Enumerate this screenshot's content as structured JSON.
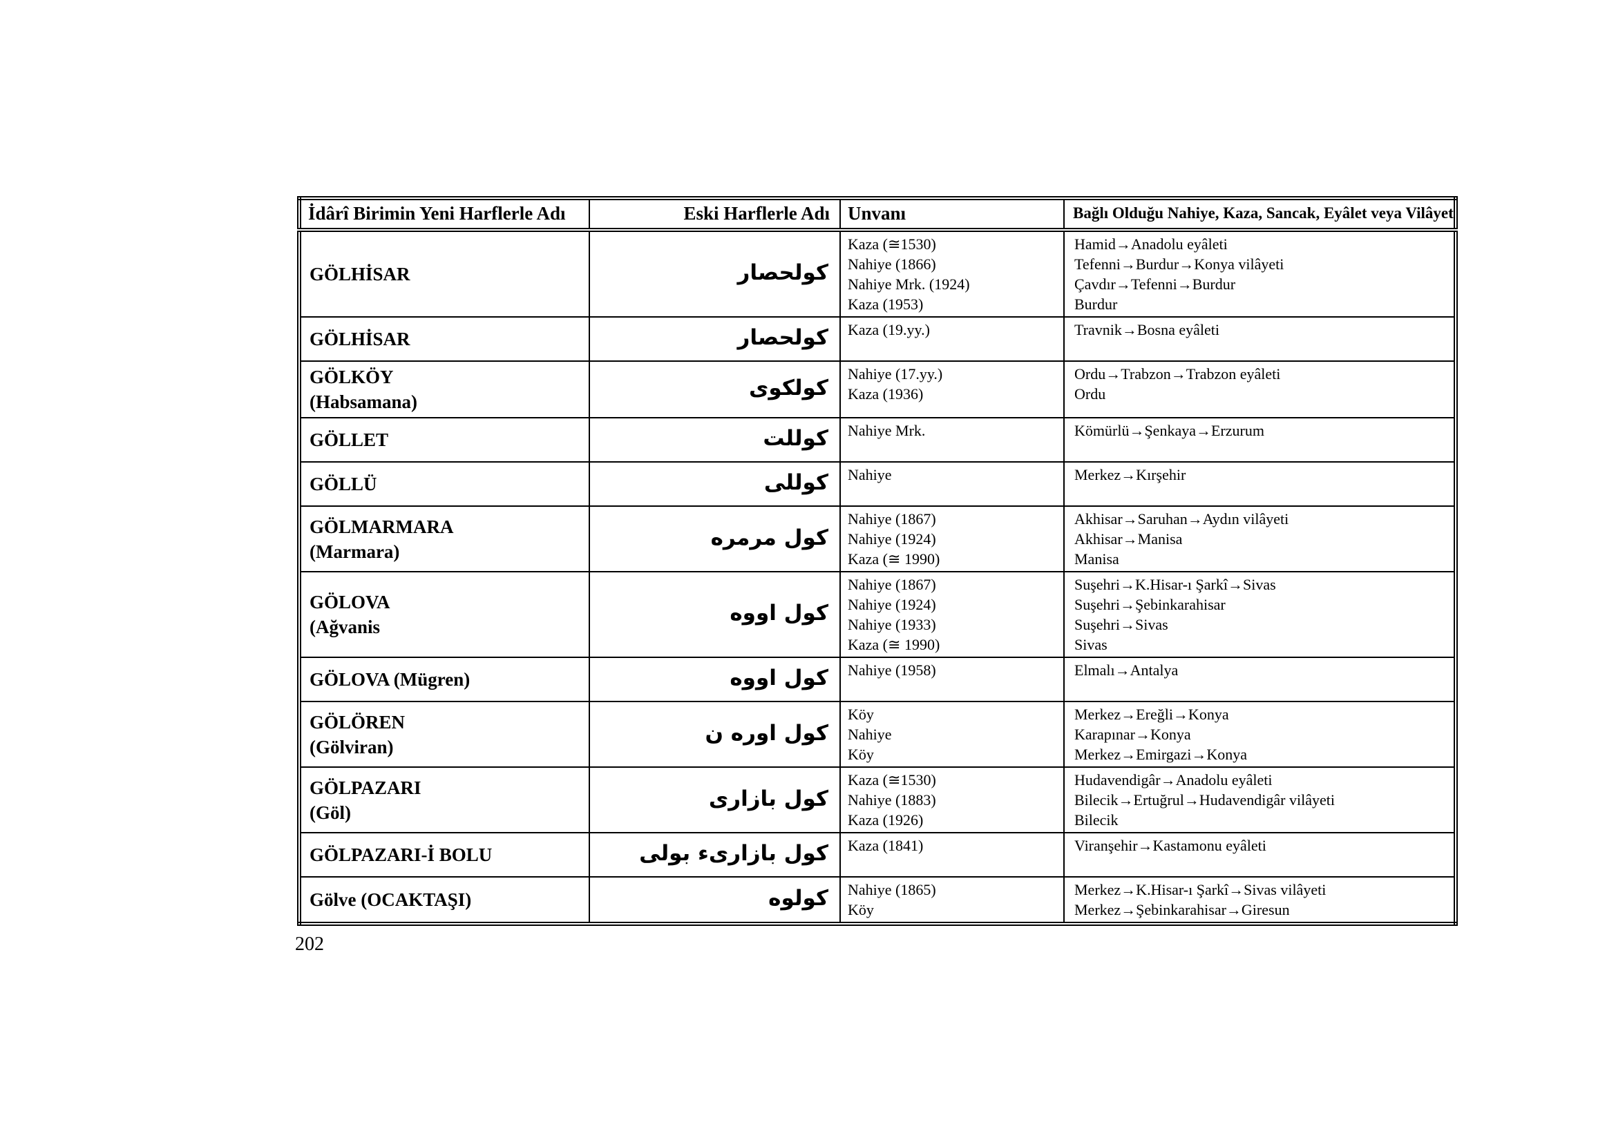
{
  "page": {
    "number": "202"
  },
  "table": {
    "headers": [
      "İdârî Birimin Yeni Harflerle Adı",
      "Eski Harflerle Adı",
      "Unvanı",
      "Bağlı Olduğu Nahiye, Kaza, Sancak, Eyâlet veya Vilâyet"
    ],
    "rows": [
      {
        "name": "GÖLHİSAR",
        "ottoman": "كولحصار",
        "unvan": [
          "Kaza (≅1530)",
          "Nahiye (1866)",
          "Nahiye Mrk. (1924)",
          "Kaza (1953)"
        ],
        "bagli": [
          "Hamid→Anadolu eyâleti",
          "Tefenni→Burdur→Konya vilâyeti",
          "Çavdır→Tefenni→Burdur",
          "Burdur"
        ]
      },
      {
        "name": "GÖLHİSAR",
        "ottoman": "كولحصار",
        "unvan": [
          "Kaza (19.yy.)"
        ],
        "bagli": [
          "Travnik→Bosna eyâleti"
        ]
      },
      {
        "name": "GÖLKÖY\n(Habsamana)",
        "ottoman": "كولكوى",
        "unvan": [
          "Nahiye (17.yy.)",
          "Kaza (1936)"
        ],
        "bagli": [
          "Ordu→Trabzon→Trabzon eyâleti",
          "Ordu"
        ]
      },
      {
        "name": "GÖLLET",
        "ottoman": "كوللت",
        "unvan": [
          "Nahiye Mrk."
        ],
        "bagli": [
          "Kömürlü→Şenkaya→Erzurum"
        ]
      },
      {
        "name": "GÖLLÜ",
        "ottoman": "كوللى",
        "unvan": [
          "Nahiye"
        ],
        "bagli": [
          "Merkez→Kırşehir"
        ]
      },
      {
        "name": "GÖLMARMARA\n(Marmara)",
        "ottoman": "كول مرمره",
        "unvan": [
          "Nahiye (1867)",
          "Nahiye (1924)",
          "Kaza (≅ 1990)"
        ],
        "bagli": [
          "Akhisar→Saruhan→Aydın vilâyeti",
          "Akhisar→Manisa",
          "Manisa"
        ]
      },
      {
        "name": "GÖLOVA\n(Ağvanis",
        "ottoman": "كول اووه",
        "unvan": [
          "Nahiye (1867)",
          "Nahiye (1924)",
          "Nahiye (1933)",
          "Kaza (≅ 1990)"
        ],
        "bagli": [
          "Suşehri→K.Hisar-ı Şarkî→Sivas",
          "Suşehri→Şebinkarahisar",
          "Suşehri→Sivas",
          "Sivas"
        ]
      },
      {
        "name": "GÖLOVA (Mügren)",
        "ottoman": "كول اووه",
        "unvan": [
          "Nahiye (1958)"
        ],
        "bagli": [
          "Elmalı→Antalya"
        ]
      },
      {
        "name": "GÖLÖREN\n(Gölviran)",
        "ottoman": "كول اوره ن",
        "unvan": [
          "Köy",
          "Nahiye",
          "Köy"
        ],
        "bagli": [
          "Merkez→Ereğli→Konya",
          "Karapınar→Konya",
          "Merkez→Emirgazi→Konya"
        ]
      },
      {
        "name": "GÖLPAZARI\n(Göl)",
        "ottoman": "كول بازارى",
        "unvan": [
          "Kaza (≅1530)",
          "Nahiye (1883)",
          "Kaza (1926)"
        ],
        "bagli": [
          "Hudavendigâr→Anadolu eyâleti",
          "Bilecik→Ertuğrul→Hudavendigâr vilâyeti",
          "Bilecik"
        ]
      },
      {
        "name": "GÖLPAZARI-İ BOLU",
        "ottoman": "كول بازارىء بولى",
        "unvan": [
          "Kaza (1841)"
        ],
        "bagli": [
          "Viranşehir→Kastamonu eyâleti"
        ]
      },
      {
        "name": "Gölve (OCAKTAŞI)",
        "ottoman": "كولوه",
        "unvan": [
          "Nahiye (1865)",
          "Köy"
        ],
        "bagli": [
          "Merkez→K.Hisar-ı Şarkî→Sivas vilâyeti",
          "Merkez→Şebinkarahisar→Giresun"
        ]
      }
    ]
  }
}
